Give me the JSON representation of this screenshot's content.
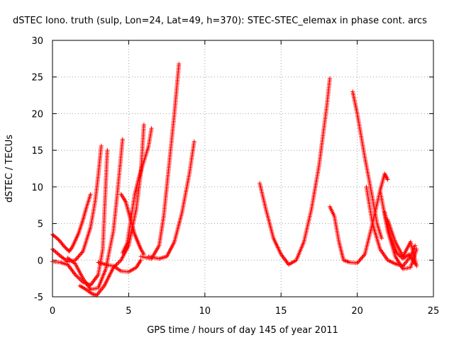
{
  "chart_data": {
    "type": "scatter",
    "title": "dSTEC Iono. truth (sulp, Lon=24, Lat=49, h=370): STEC-STEC_elemax in phase cont. arcs",
    "xlabel": "GPS time / hours of day 145 of year 2011",
    "ylabel": "dSTEC  / TECUs",
    "xlim": [
      0,
      25
    ],
    "ylim": [
      -5,
      30
    ],
    "x_ticks": [
      "0",
      "5",
      "10",
      "15",
      "20",
      "25"
    ],
    "y_ticks": [
      "-5",
      "0",
      "5",
      "10",
      "15",
      "20",
      "25",
      "30"
    ],
    "grid": true,
    "marker": "+",
    "marker_color": "#ff0000",
    "series": [
      {
        "x": [
          0.0,
          0.4,
          0.8,
          1.1,
          1.3,
          1.7,
          2.0,
          2.2,
          2.5
        ],
        "y": [
          3.5,
          2.8,
          1.8,
          1.2,
          1.8,
          3.6,
          5.5,
          7.0,
          9.0
        ]
      },
      {
        "x": [
          0.0,
          0.5,
          1.0,
          1.5,
          2.0,
          2.5,
          2.8,
          3.0,
          3.2
        ],
        "y": [
          1.5,
          0.6,
          -0.2,
          0.0,
          1.2,
          4.5,
          8.0,
          11.5,
          15.6
        ]
      },
      {
        "x": [
          0.0,
          0.5,
          1.0,
          1.5,
          2.0,
          2.5,
          3.0,
          3.3,
          3.6
        ],
        "y": [
          -0.2,
          -0.3,
          -0.6,
          -2.0,
          -3.0,
          -3.4,
          -2.0,
          1.5,
          15.0
        ]
      },
      {
        "x": [
          1.0,
          1.5,
          2.0,
          2.5,
          3.0,
          3.5,
          4.0,
          4.3,
          4.6
        ],
        "y": [
          0.3,
          -0.5,
          -2.5,
          -4.0,
          -3.8,
          -1.2,
          4.0,
          10.0,
          16.5
        ]
      },
      {
        "x": [
          1.8,
          2.2,
          2.6,
          2.9,
          3.4,
          4.0,
          4.5,
          5.0,
          5.5,
          5.8,
          6.0
        ],
        "y": [
          -3.5,
          -4.0,
          -4.6,
          -4.8,
          -3.5,
          -1.0,
          0.0,
          2.0,
          7.0,
          12.0,
          18.5
        ]
      },
      {
        "x": [
          3.0,
          3.5,
          4.0,
          4.5,
          5.0,
          5.5,
          5.8
        ],
        "y": [
          -0.3,
          -0.6,
          -0.8,
          -1.5,
          -1.6,
          -1.0,
          0.0
        ]
      },
      {
        "x": [
          4.5,
          4.8,
          5.0,
          5.2,
          5.4,
          5.6,
          5.8,
          6.0
        ],
        "y": [
          9.0,
          8.0,
          6.5,
          5.0,
          3.5,
          2.5,
          1.5,
          0.8
        ]
      },
      {
        "x": [
          4.6,
          4.9,
          5.1,
          5.4,
          5.7,
          6.0,
          6.3,
          6.5
        ],
        "y": [
          1.0,
          2.3,
          5.0,
          9.0,
          11.5,
          13.5,
          15.5,
          18.0
        ]
      },
      {
        "x": [
          5.8,
          6.5,
          7.0,
          7.3,
          7.6,
          8.0,
          8.3
        ],
        "y": [
          0.5,
          0.2,
          2.0,
          6.0,
          12.0,
          20.0,
          26.8
        ]
      },
      {
        "x": [
          6.3,
          7.0,
          7.5,
          8.0,
          8.5,
          9.0,
          9.3
        ],
        "y": [
          0.5,
          0.2,
          0.5,
          2.5,
          6.5,
          12.0,
          16.2
        ]
      },
      {
        "x": [
          13.6,
          14.0,
          14.5,
          15.0,
          15.5,
          16.0,
          16.5,
          17.0,
          17.5,
          18.0,
          18.2
        ],
        "y": [
          10.5,
          7.0,
          3.0,
          0.8,
          -0.6,
          0.0,
          2.5,
          7.0,
          13.0,
          21.0,
          24.8
        ]
      },
      {
        "x": [
          18.2,
          18.5,
          18.8,
          19.1,
          19.5,
          20.0,
          20.5,
          21.0,
          21.5,
          21.8,
          22.0
        ],
        "y": [
          7.3,
          6.0,
          2.5,
          0.0,
          -0.3,
          -0.4,
          0.8,
          5.0,
          9.5,
          11.8,
          11.0
        ]
      },
      {
        "x": [
          19.7,
          20.0,
          20.5,
          21.0,
          21.3,
          21.6
        ],
        "y": [
          23.0,
          20.0,
          14.0,
          8.5,
          5.0,
          3.0
        ]
      },
      {
        "x": [
          20.6,
          21.0,
          21.5,
          22.0,
          22.5,
          23.0,
          23.5,
          23.8
        ],
        "y": [
          10.0,
          5.0,
          1.5,
          0.0,
          -0.5,
          -0.8,
          0.5,
          2.0
        ]
      },
      {
        "x": [
          21.5,
          22.0,
          22.5,
          23.0,
          23.5,
          23.9
        ],
        "y": [
          9.5,
          4.0,
          0.5,
          -1.2,
          -1.0,
          1.5
        ]
      },
      {
        "x": [
          21.8,
          22.2,
          22.6,
          23.0,
          23.4,
          23.8
        ],
        "y": [
          6.5,
          3.0,
          1.0,
          0.2,
          0.8,
          -0.5
        ]
      },
      {
        "x": [
          22.0,
          22.5,
          23.0,
          23.5,
          23.9
        ],
        "y": [
          5.5,
          2.5,
          0.5,
          2.5,
          -0.8
        ]
      }
    ]
  }
}
